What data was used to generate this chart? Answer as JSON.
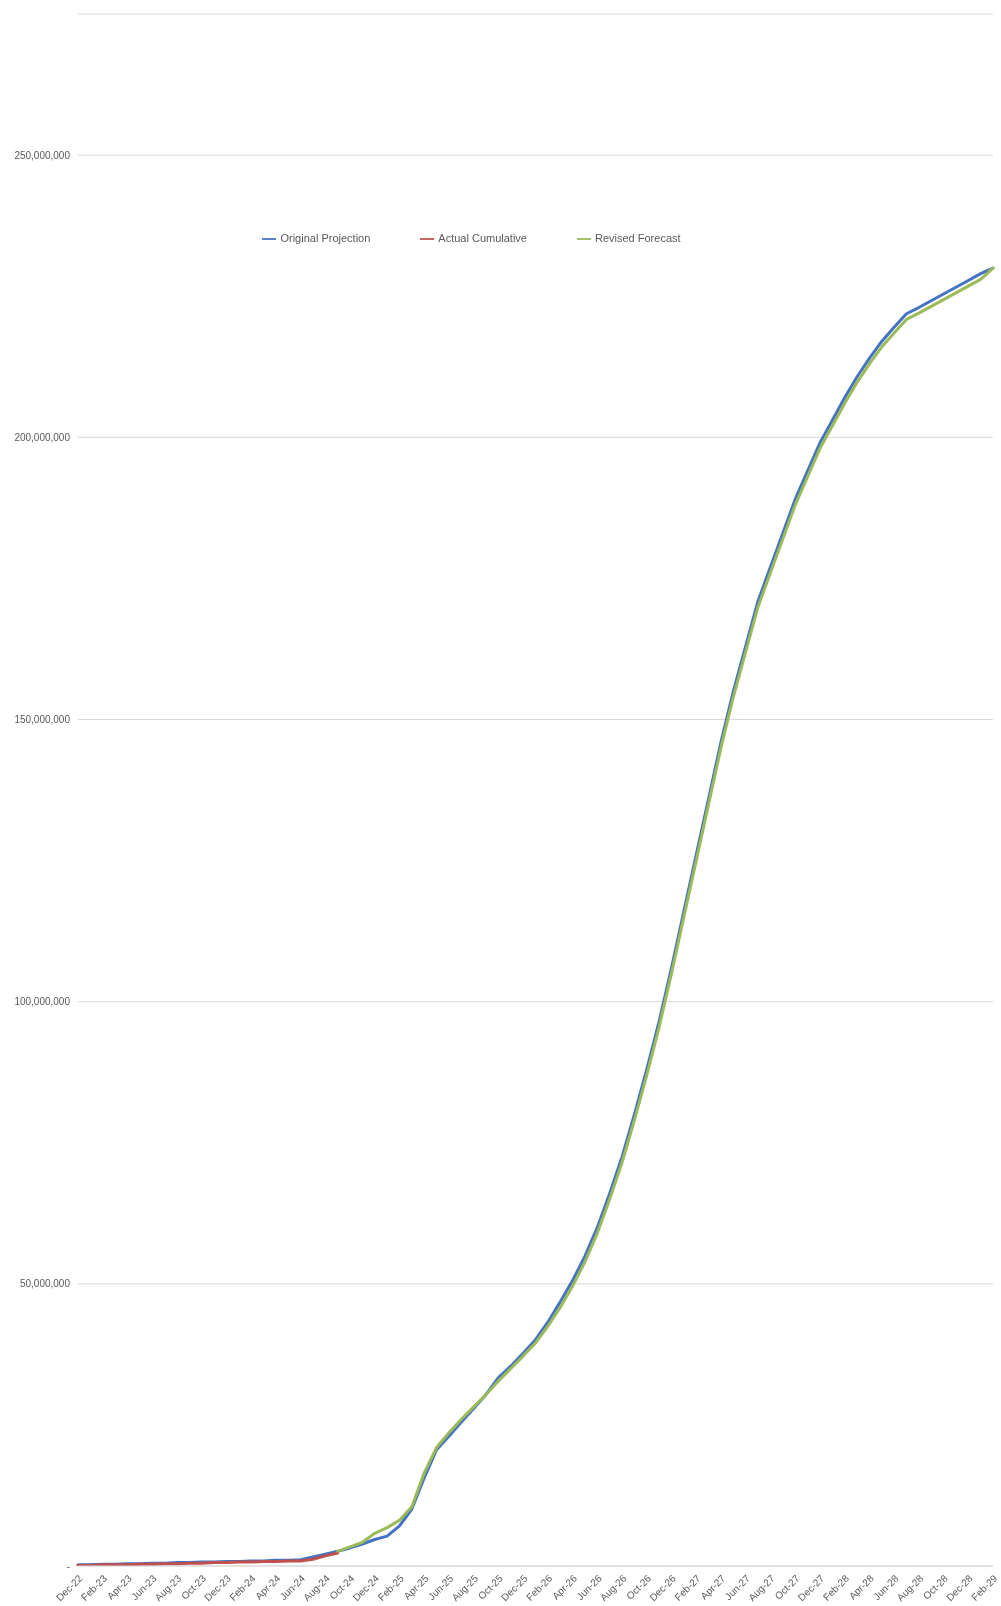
{
  "chart_data": {
    "type": "line",
    "categories": [
      "Dec-22",
      null,
      "Feb-23",
      null,
      "Apr-23",
      null,
      "Jun-23",
      null,
      "Aug-23",
      null,
      "Oct-23",
      null,
      "Dec-23",
      null,
      "Feb-24",
      null,
      "Apr-24",
      null,
      "Jun-24",
      null,
      "Aug-24",
      null,
      "Oct-24",
      null,
      "Dec-24",
      null,
      "Feb-25",
      null,
      "Apr-25",
      null,
      "Jun-25",
      null,
      "Aug-25",
      null,
      "Oct-25",
      null,
      "Dec-25",
      null,
      "Feb-26",
      null,
      "Apr-26",
      null,
      "Jun-26",
      null,
      "Aug-26",
      null,
      "Oct-26",
      null,
      "Dec-26",
      null,
      "Feb-27",
      null,
      "Apr-27",
      null,
      "Jun-27",
      null,
      "Aug-27",
      null,
      "Oct-27",
      null,
      "Dec-27",
      null,
      "Feb-28",
      null,
      "Apr-28",
      null,
      "Jun-28",
      null,
      "Aug-28",
      null,
      "Oct-28",
      null,
      "Dec-28",
      null,
      "Feb-29"
    ],
    "series": [
      {
        "name": "Original Projection",
        "color": "#4472c4",
        "values": [
          200000,
          200000,
          300000,
          300000,
          400000,
          400000,
          500000,
          500000,
          600000,
          600000,
          700000,
          700000,
          800000,
          800000,
          900000,
          900000,
          1000000,
          1000000,
          1100000,
          1600000,
          2100000,
          2600000,
          3200000,
          3900000,
          4700000,
          5300000,
          7100000,
          10100000,
          15600000,
          20600000,
          23000000,
          25500000,
          27900000,
          30400000,
          33400000,
          35400000,
          37700000,
          40100000,
          43200000,
          46800000,
          50600000,
          54900000,
          60000000,
          66000000,
          72500000,
          80000000,
          88000000,
          96500000,
          106000000,
          116000000,
          126000000,
          136000000,
          146000000,
          155000000,
          163000000,
          171000000,
          177000000,
          183000000,
          189000000,
          194000000,
          199000000,
          203000000,
          207000000,
          210700000,
          214000000,
          217000000,
          219500000,
          221900000,
          223000000,
          224200000,
          225400000,
          226600000,
          227800000,
          229000000,
          230000000
        ]
      },
      {
        "name": "Actual Cumulative",
        "color": "#c0504d",
        "values": [
          100000,
          100000,
          200000,
          200000,
          200000,
          300000,
          300000,
          400000,
          400000,
          500000,
          500000,
          600000,
          600000,
          700000,
          700000,
          800000,
          800000,
          900000,
          900000,
          1200000,
          1800000,
          2300000,
          null,
          null,
          null,
          null,
          null,
          null,
          null,
          null,
          null,
          null,
          null,
          null,
          null,
          null,
          null,
          null,
          null,
          null,
          null,
          null,
          null,
          null,
          null,
          null,
          null,
          null,
          null,
          null,
          null,
          null,
          null,
          null,
          null,
          null,
          null,
          null,
          null,
          null,
          null,
          null,
          null,
          null,
          null,
          null,
          null,
          null,
          null,
          null,
          null,
          null,
          null,
          null,
          null
        ]
      },
      {
        "name": "Revised Forecast",
        "color": "#9bbb59",
        "values": [
          null,
          null,
          null,
          null,
          null,
          null,
          null,
          null,
          null,
          null,
          null,
          null,
          null,
          null,
          null,
          null,
          null,
          null,
          null,
          null,
          null,
          2600000,
          3400000,
          4200000,
          5800000,
          6800000,
          8100000,
          10500000,
          16500000,
          21000000,
          23600000,
          26000000,
          28200000,
          30400000,
          32800000,
          35000000,
          37200000,
          39500000,
          42500000,
          45800000,
          49600000,
          53900000,
          59000000,
          65000000,
          71500000,
          79000000,
          87000000,
          95500000,
          105000000,
          115000000,
          125000000,
          135000000,
          145000000,
          154000000,
          162000000,
          170000000,
          176000000,
          182000000,
          188000000,
          193000000,
          198000000,
          202000000,
          206000000,
          209700000,
          213000000,
          216000000,
          218500000,
          220900000,
          222000000,
          223200000,
          224400000,
          225600000,
          226800000,
          228000000,
          230000000
        ]
      }
    ],
    "ylim": [
      0,
      275000000
    ],
    "yticks": [
      {
        "value": 0,
        "label": "-"
      },
      {
        "value": 50000000,
        "label": "50,000,000"
      },
      {
        "value": 100000000,
        "label": "100,000,000"
      },
      {
        "value": 150000000,
        "label": "150,000,000"
      },
      {
        "value": 200000000,
        "label": "200,000,000"
      },
      {
        "value": 250000000,
        "label": "250,000,000"
      }
    ],
    "grid": "y",
    "legend": "top",
    "marker": "none",
    "line_style": "solid"
  }
}
